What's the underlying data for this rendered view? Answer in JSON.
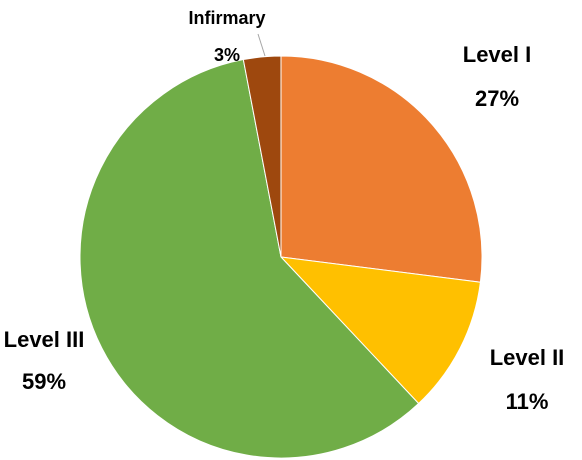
{
  "chart_data": {
    "type": "pie",
    "categories": [
      "Level I",
      "Level II",
      "Level III",
      "Infirmary"
    ],
    "values": [
      27,
      11,
      59,
      3
    ],
    "value_labels": [
      "27%",
      "11%",
      "59%",
      "3%"
    ],
    "colors": [
      "#ED7D31",
      "#FFC000",
      "#70AD47",
      "#9E480E"
    ]
  }
}
